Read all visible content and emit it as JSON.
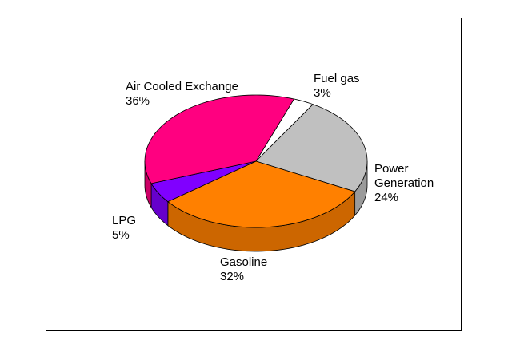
{
  "chart_data": {
    "type": "pie3d",
    "categories": [
      "Fuel gas",
      "Power Generation",
      "Gasoline",
      "LPG",
      "Air Cooled Exchange"
    ],
    "values": [
      3,
      24,
      32,
      5,
      36
    ],
    "value_labels": [
      "3%",
      "24%",
      "32%",
      "5%",
      "36%"
    ],
    "colors": [
      "#ffffff",
      "#c0c0c0",
      "#ff8000",
      "#8000ff",
      "#ff0080"
    ]
  }
}
